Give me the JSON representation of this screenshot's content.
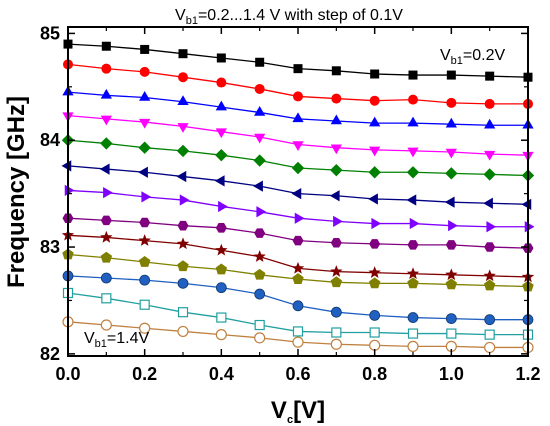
{
  "chart_data": {
    "type": "line",
    "title": {
      "prefix": "V",
      "sub": "b1",
      "rest": "=0.2...1.4 V with step of 0.1V"
    },
    "xlabel": {
      "prefix": "V",
      "sub": "c",
      "rest": "[V]"
    },
    "ylabel": "Frequency [GHz]",
    "xlim": [
      0.0,
      1.2
    ],
    "ylim": [
      81.98,
      85.06
    ],
    "xticks": [
      "0.0",
      "0.2",
      "0.4",
      "0.6",
      "0.8",
      "1.0",
      "1.2"
    ],
    "yticks": [
      "82",
      "83",
      "84",
      "85"
    ],
    "grid": false,
    "annotations": [
      {
        "prefix": "V",
        "sub": "b1",
        "rest": "=0.2V"
      },
      {
        "prefix": "V",
        "sub": "b1",
        "rest": "=1.4V"
      }
    ],
    "x": [
      0.0,
      0.1,
      0.2,
      0.3,
      0.4,
      0.5,
      0.6,
      0.7,
      0.8,
      0.9,
      1.0,
      1.1,
      1.2
    ],
    "series": [
      {
        "color": "#000000",
        "marker": "square",
        "values": [
          84.9,
          84.88,
          84.85,
          84.81,
          84.77,
          84.73,
          84.67,
          84.65,
          84.62,
          84.61,
          84.61,
          84.6,
          84.59
        ]
      },
      {
        "color": "#ff0000",
        "marker": "circle",
        "values": [
          84.71,
          84.67,
          84.64,
          84.59,
          84.54,
          84.48,
          84.41,
          84.39,
          84.37,
          84.38,
          84.35,
          84.34,
          84.34
        ]
      },
      {
        "color": "#0000ff",
        "marker": "triangle-up",
        "values": [
          84.45,
          84.42,
          84.4,
          84.36,
          84.31,
          84.26,
          84.2,
          84.18,
          84.16,
          84.16,
          84.15,
          84.14,
          84.14
        ]
      },
      {
        "color": "#ff00ff",
        "marker": "triangle-down",
        "values": [
          84.23,
          84.2,
          84.17,
          84.13,
          84.08,
          84.03,
          83.96,
          83.93,
          83.91,
          83.9,
          83.89,
          83.87,
          83.86
        ]
      },
      {
        "color": "#008000",
        "marker": "diamond",
        "values": [
          84.0,
          83.97,
          83.93,
          83.9,
          83.86,
          83.81,
          83.74,
          83.72,
          83.7,
          83.7,
          83.69,
          83.68,
          83.67
        ]
      },
      {
        "color": "#000080",
        "marker": "triangle-left",
        "values": [
          83.76,
          83.73,
          83.7,
          83.66,
          83.62,
          83.57,
          83.5,
          83.48,
          83.45,
          83.44,
          83.42,
          83.41,
          83.4
        ]
      },
      {
        "color": "#8000ff",
        "marker": "triangle-right",
        "values": [
          83.53,
          83.51,
          83.47,
          83.44,
          83.38,
          83.33,
          83.27,
          83.24,
          83.22,
          83.22,
          83.2,
          83.19,
          83.19
        ]
      },
      {
        "color": "#800080",
        "marker": "hexagon",
        "values": [
          83.27,
          83.25,
          83.23,
          83.2,
          83.18,
          83.13,
          83.06,
          83.04,
          83.03,
          83.02,
          83.02,
          83.0,
          82.99
        ]
      },
      {
        "color": "#800000",
        "marker": "star",
        "values": [
          83.11,
          83.09,
          83.06,
          83.03,
          82.97,
          82.91,
          82.8,
          82.77,
          82.76,
          82.75,
          82.74,
          82.73,
          82.72
        ]
      },
      {
        "color": "#808000",
        "marker": "pentagon",
        "values": [
          82.93,
          82.9,
          82.86,
          82.82,
          82.79,
          82.74,
          82.7,
          82.67,
          82.66,
          82.66,
          82.65,
          82.64,
          82.63
        ]
      },
      {
        "color": "#2060c0",
        "marker": "ball",
        "values": [
          82.73,
          82.71,
          82.69,
          82.66,
          82.62,
          82.56,
          82.45,
          82.39,
          82.36,
          82.34,
          82.33,
          82.32,
          82.32
        ]
      },
      {
        "color": "#20a0a0",
        "marker": "open-square",
        "values": [
          82.57,
          82.52,
          82.46,
          82.39,
          82.34,
          82.27,
          82.21,
          82.2,
          82.2,
          82.19,
          82.19,
          82.18,
          82.18
        ]
      },
      {
        "color": "#c08040",
        "marker": "open-circle",
        "values": [
          82.3,
          82.27,
          82.24,
          82.21,
          82.18,
          82.15,
          82.11,
          82.09,
          82.08,
          82.07,
          82.07,
          82.06,
          82.06
        ]
      }
    ]
  }
}
